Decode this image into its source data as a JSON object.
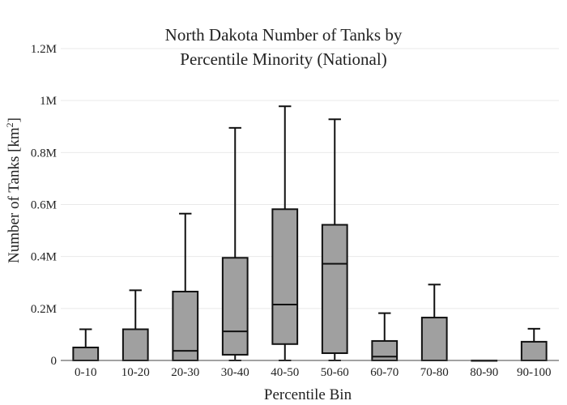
{
  "chart_data": {
    "type": "box",
    "title_lines": [
      "North Dakota Number of Tanks by",
      "Percentile Minority (National)"
    ],
    "xlabel": "Percentile Bin",
    "ylabel_main": "Number of Tanks  [km",
    "ylabel_sup": "2",
    "ylabel_end": "]",
    "ylim": [
      0,
      1200000
    ],
    "yticks": [
      {
        "value": 0,
        "label": "0"
      },
      {
        "value": 200000,
        "label": "0.2M"
      },
      {
        "value": 400000,
        "label": "0.4M"
      },
      {
        "value": 600000,
        "label": "0.6M"
      },
      {
        "value": 800000,
        "label": "0.8M"
      },
      {
        "value": 1000000,
        "label": "1M"
      },
      {
        "value": 1200000,
        "label": "1.2M"
      }
    ],
    "grid": true,
    "categories": [
      "0-10",
      "10-20",
      "20-30",
      "30-40",
      "40-50",
      "50-60",
      "60-70",
      "70-80",
      "80-90",
      "90-100"
    ],
    "boxes": [
      {
        "min": 0,
        "q1": 0,
        "median": 0,
        "q3": 50000,
        "max": 120000
      },
      {
        "min": 0,
        "q1": 0,
        "median": 0,
        "q3": 120000,
        "max": 270000
      },
      {
        "min": 0,
        "q1": 0,
        "median": 37000,
        "q3": 265000,
        "max": 565000
      },
      {
        "min": 0,
        "q1": 22000,
        "median": 112000,
        "q3": 395000,
        "max": 895000
      },
      {
        "min": 0,
        "q1": 63000,
        "median": 215000,
        "q3": 582000,
        "max": 978000
      },
      {
        "min": 0,
        "q1": 28000,
        "median": 372000,
        "q3": 522000,
        "max": 928000
      },
      {
        "min": 0,
        "q1": 0,
        "median": 15000,
        "q3": 75000,
        "max": 182000
      },
      {
        "min": 0,
        "q1": 0,
        "median": 0,
        "q3": 165000,
        "max": 292000
      },
      {
        "min": 0,
        "q1": 0,
        "median": 0,
        "q3": 0,
        "max": 0
      },
      {
        "min": 0,
        "q1": 0,
        "median": 0,
        "q3": 72000,
        "max": 122000
      }
    ],
    "colors": {
      "box_fill": "#a0a0a0",
      "box_stroke": "#111111",
      "grid": "#e9e9e9"
    }
  }
}
